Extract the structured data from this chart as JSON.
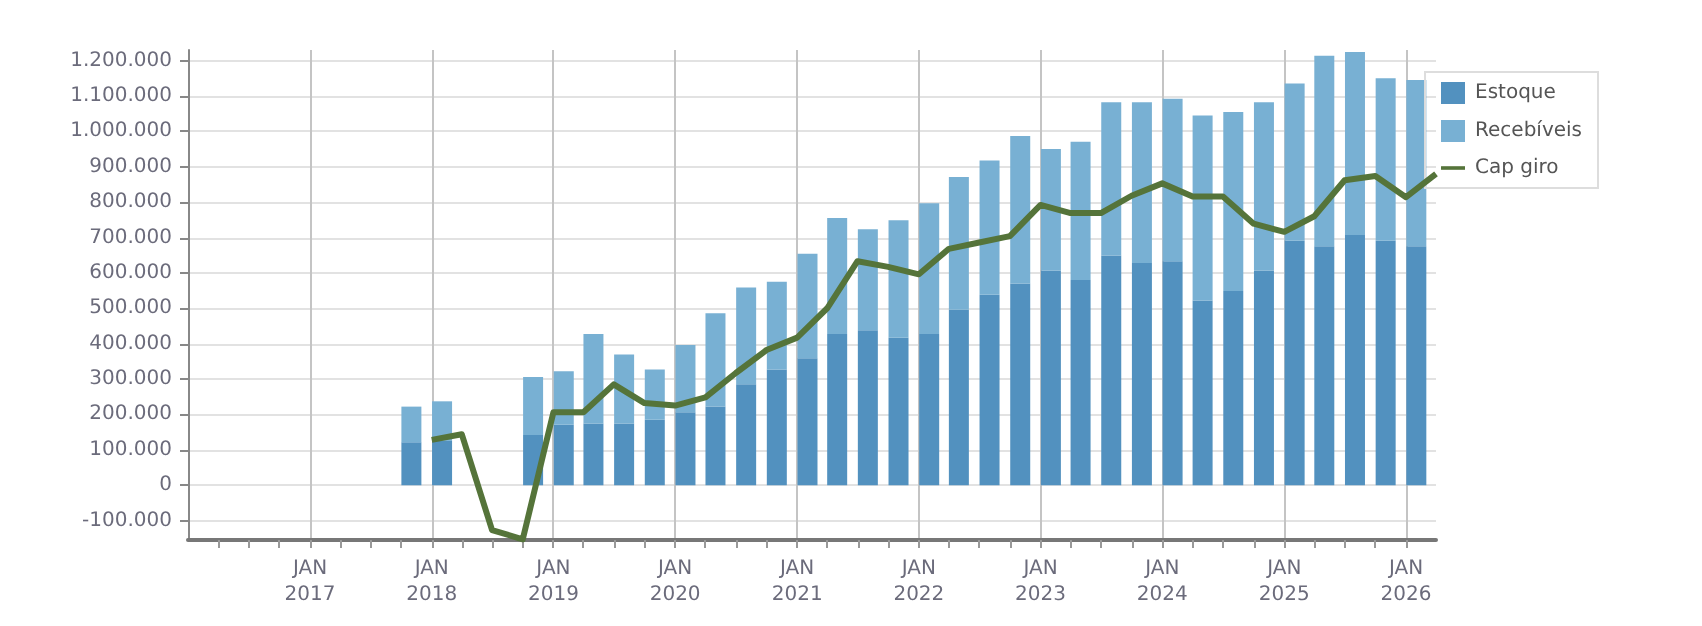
{
  "chart_data": {
    "type": "bar",
    "stacked": true,
    "x": [
      "2017-11",
      "2018-02",
      "2018-05",
      "2018-08",
      "2018-11",
      "2019-02",
      "2019-05",
      "2019-08",
      "2019-11",
      "2020-02",
      "2020-05",
      "2020-08",
      "2020-11",
      "2021-02",
      "2021-05",
      "2021-08",
      "2021-11",
      "2022-02",
      "2022-05",
      "2022-08",
      "2022-11",
      "2023-02",
      "2023-05",
      "2023-08",
      "2023-11",
      "2024-02",
      "2024-05",
      "2024-08",
      "2024-11",
      "2025-02",
      "2025-05",
      "2025-08",
      "2025-11",
      "2026-02"
    ],
    "series": [
      {
        "name": "Estoque",
        "color": "#5291bf",
        "values": [
          121000,
          125000,
          0,
          0,
          142000,
          171000,
          174000,
          174000,
          185000,
          206000,
          222000,
          285000,
          327000,
          359000,
          427000,
          438000,
          417000,
          427000,
          496000,
          538000,
          570000,
          607000,
          580000,
          649000,
          628000,
          633000,
          522000,
          549000,
          607000,
          691000,
          675000,
          707000,
          691000,
          675000
        ]
      },
      {
        "name": "Recebíveis",
        "color": "#78b0d3",
        "values": [
          101000,
          112000,
          0,
          0,
          164000,
          151000,
          253000,
          195000,
          142000,
          190000,
          264000,
          274000,
          248000,
          295000,
          328000,
          285000,
          332000,
          370000,
          375000,
          380000,
          417000,
          343000,
          391000,
          433000,
          454000,
          459000,
          523000,
          506000,
          475000,
          444000,
          539000,
          517000,
          459000,
          470000
        ]
      },
      {
        "name": "Cap giro",
        "type": "line",
        "color": "#55743a",
        "marker": "none",
        "line_style": "solid",
        "x": [
          "2018-01",
          "2018-04",
          "2018-07",
          "2018-10",
          "2019-01",
          "2019-04",
          "2019-07",
          "2019-10",
          "2020-01",
          "2020-04",
          "2020-07",
          "2020-10",
          "2021-01",
          "2021-04",
          "2021-07",
          "2021-10",
          "2022-01",
          "2022-04",
          "2022-07",
          "2022-10",
          "2023-01",
          "2023-04",
          "2023-07",
          "2023-10",
          "2024-01",
          "2024-04",
          "2024-07",
          "2024-10",
          "2025-01",
          "2025-04",
          "2025-07",
          "2025-10",
          "2026-01",
          "2026-04"
        ],
        "values": [
          128000,
          144000,
          -127000,
          -153000,
          206000,
          206000,
          285000,
          232000,
          225000,
          248000,
          317000,
          382000,
          417000,
          500000,
          633000,
          617000,
          596000,
          668000,
          686000,
          704000,
          792000,
          769000,
          769000,
          818000,
          853000,
          816000,
          816000,
          739000,
          716000,
          760000,
          862000,
          874000,
          814000,
          880000
        ]
      }
    ],
    "xlim": [
      "2016-01",
      "2026-04"
    ],
    "xticks": [
      {
        "value": "2016-04",
        "label": null
      },
      {
        "value": "2016-07",
        "label": null
      },
      {
        "value": "2016-10",
        "label": null
      },
      {
        "value": "2017-01",
        "label": "JAN\n2017"
      },
      {
        "value": "2017-04",
        "label": null
      },
      {
        "value": "2017-07",
        "label": null
      },
      {
        "value": "2017-10",
        "label": null
      },
      {
        "value": "2018-01",
        "label": "JAN\n2018"
      },
      {
        "value": "2018-04",
        "label": null
      },
      {
        "value": "2018-07",
        "label": null
      },
      {
        "value": "2018-10",
        "label": null
      },
      {
        "value": "2019-01",
        "label": "JAN\n2019"
      },
      {
        "value": "2019-04",
        "label": null
      },
      {
        "value": "2019-07",
        "label": null
      },
      {
        "value": "2019-10",
        "label": null
      },
      {
        "value": "2020-01",
        "label": "JAN\n2020"
      },
      {
        "value": "2020-04",
        "label": null
      },
      {
        "value": "2020-07",
        "label": null
      },
      {
        "value": "2020-10",
        "label": null
      },
      {
        "value": "2021-01",
        "label": "JAN\n2021"
      },
      {
        "value": "2021-04",
        "label": null
      },
      {
        "value": "2021-07",
        "label": null
      },
      {
        "value": "2021-10",
        "label": null
      },
      {
        "value": "2022-01",
        "label": "JAN\n2022"
      },
      {
        "value": "2022-04",
        "label": null
      },
      {
        "value": "2022-07",
        "label": null
      },
      {
        "value": "2022-10",
        "label": null
      },
      {
        "value": "2023-01",
        "label": "JAN\n2023"
      },
      {
        "value": "2023-04",
        "label": null
      },
      {
        "value": "2023-07",
        "label": null
      },
      {
        "value": "2023-10",
        "label": null
      },
      {
        "value": "2024-01",
        "label": "JAN\n2024"
      },
      {
        "value": "2024-04",
        "label": null
      },
      {
        "value": "2024-07",
        "label": null
      },
      {
        "value": "2024-10",
        "label": null
      },
      {
        "value": "2025-01",
        "label": "JAN\n2025"
      },
      {
        "value": "2025-04",
        "label": null
      },
      {
        "value": "2025-07",
        "label": null
      },
      {
        "value": "2025-10",
        "label": null
      },
      {
        "value": "2026-01",
        "label": "JAN\n2026"
      }
    ],
    "ylim": [
      -155000,
      1230000
    ],
    "yticks": [
      {
        "value": -100000,
        "label": "-100.000"
      },
      {
        "value": 0,
        "label": "0"
      },
      {
        "value": 100000,
        "label": "100.000"
      },
      {
        "value": 200000,
        "label": "200.000"
      },
      {
        "value": 300000,
        "label": "300.000"
      },
      {
        "value": 400000,
        "label": "400.000"
      },
      {
        "value": 500000,
        "label": "500.000"
      },
      {
        "value": 600000,
        "label": "600.000"
      },
      {
        "value": 700000,
        "label": "700.000"
      },
      {
        "value": 800000,
        "label": "800.000"
      },
      {
        "value": 900000,
        "label": "900.000"
      },
      {
        "value": 1000000,
        "label": "1.000.000"
      },
      {
        "value": 1100000,
        "label": "1.100.000"
      },
      {
        "value": 1200000,
        "label": "1.200.000"
      }
    ],
    "grid": true,
    "legend": "top right"
  }
}
